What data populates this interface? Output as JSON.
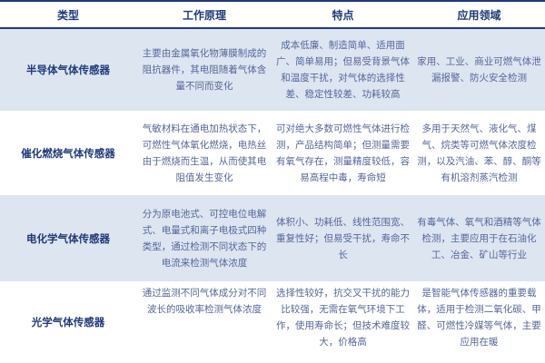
{
  "headers": [
    "类型",
    "工作原理",
    "特点",
    "应用领域"
  ],
  "rows": [
    {
      "type": "半导体气体传感器",
      "principle": "主要由金属氧化物薄膜制成的阻抗器件，其电阻随着气体含量不同而变化",
      "features": "成本低廉、制造简单、适用面广、简单易用；但易受背景气体和温度干扰，对气体的选择性差、稳定性较差、功耗较高",
      "applications": "家用、工业、商业可燃气体泄漏报警、防火安全检测"
    },
    {
      "type": "催化燃烧气体传感器",
      "principle": "气敏材料在通电加热状态下，可燃性气体氧化燃烧，电热丝由于燃烧而生温，从而使其电阻值发生变化",
      "features": "可对绝大多数可燃性气体进行检测，产品结构简单；但测量需要有氧气存在，测量精度较低，容易高程中毒，寿命短",
      "applications": "多用于天然气、液化气、煤气、烷类等可燃气体浓度检测，以及汽油、苯、醇、酮等有机溶剂蒸汽检测"
    },
    {
      "type": "电化学气体传感器",
      "principle": "分为原电池式、可控电位电解式、电量式和离子电极式四种类型，通过检测不同状态下的电流来检测气体浓度",
      "features": "体积小、功耗低、线性范围宽、重复性好；但易受干扰，寿命不长",
      "applications": "有毒气体、氧气和酒精等气体检测，主要应用于在石油化工、冶金、矿山等行业"
    },
    {
      "type": "光学气体传感器",
      "principle": "通过监测不同气体成分对不同波长的吸收率检测气体浓度",
      "features": "选择性较好，抗交叉干扰的能力比较强，无需在氧气环境下工作，使用寿命长；但技术难度较大，价格高",
      "applications": "是智能气体传感器的重要载体，适用于检测二氧化碳、甲醛、可燃性冷媒等气体，主要应用在暖"
    }
  ]
}
